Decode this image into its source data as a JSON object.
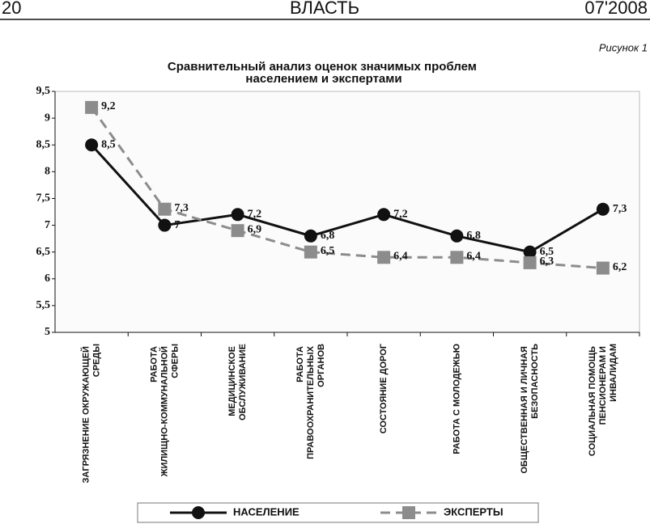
{
  "header": {
    "page": "20",
    "magazine": "ВЛАСТЬ",
    "issue": "07'2008",
    "figure": "Рисунок 1"
  },
  "chart_data": {
    "type": "line",
    "title": "Сравнительный анализ оценок значимых проблем населением и экспертами",
    "categories": [
      "ЗАГРЯЗНЕНИЕ ОКРУЖАЮЩЕЙ СРЕДЫ",
      "РАБОТА ЖИЛИЩНО-КОММУНАЛЬНОЙ СФЕРЫ",
      "МЕДИЦИНСКОЕ ОБСЛУЖИВАНИЕ",
      "РАБОТА ПРАВООХРАНИТЕЛЬНЫХ ОРГАНОВ",
      "СОСТОЯНИЕ ДОРОГ",
      "РАБОТА С МОЛОДЕЖЬЮ",
      "ОБЩЕСТВЕННАЯ И ЛИЧНАЯ БЕЗОПАСНОСТЬ",
      "СОЦИАЛЬНАЯ ПОМОЩЬ ПЕНСИОНЕРАМ И ИНВАЛИДАМ"
    ],
    "series": [
      {
        "name": "НАСЕЛЕНИЕ",
        "color": "#111111",
        "dash": false,
        "marker": "circle",
        "values": [
          8.5,
          7,
          7.2,
          6.8,
          7.2,
          6.8,
          6.5,
          7.3
        ],
        "value_labels": [
          "8,5",
          "7",
          "7,2",
          "6,8",
          "7,2",
          "6,8",
          "6,5",
          "7,3"
        ]
      },
      {
        "name": "ЭКСПЕРТЫ",
        "color": "#8c8c8c",
        "dash": true,
        "marker": "square",
        "values": [
          9.2,
          7.3,
          6.9,
          6.5,
          6.4,
          6.4,
          6.3,
          6.2
        ],
        "value_labels": [
          "9,2",
          "7,3",
          "6,9",
          "6,5",
          "6,4",
          "6,4",
          "6,3",
          "6,2"
        ]
      }
    ],
    "ylim": [
      5,
      9.5
    ],
    "yticks": [
      5,
      {
        "value": 5.5,
        "label": "5,5"
      },
      6,
      {
        "value": 6.5,
        "label": "6,5"
      },
      7,
      {
        "value": 7.5,
        "label": "7,5"
      },
      8,
      {
        "value": 8.5,
        "label": "8,5"
      },
      9,
      {
        "value": 9.5,
        "label": "9,5"
      }
    ]
  }
}
